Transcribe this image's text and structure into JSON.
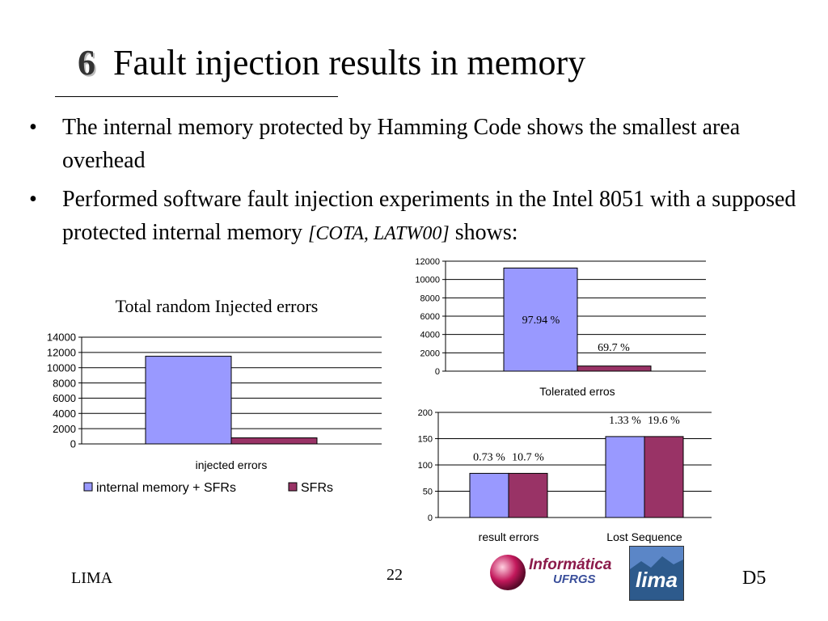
{
  "slide": {
    "number": "6",
    "title": "Fault injection results in memory",
    "bullets": [
      {
        "text": "The internal memory protected by Hamming Code shows the smallest area overhead"
      },
      {
        "text": "Performed software fault injection experiments in the Intel 8051 with a supposed protected internal memory ",
        "citation": "[COTA, LATW00]",
        "tail": " shows:"
      }
    ],
    "footer": {
      "left": "LIMA",
      "center": "22",
      "right": "D5"
    },
    "logos": {
      "informatica": {
        "line1": "Informática",
        "line2": "UFRGS",
        "colors": {
          "sphere": "#c2185b",
          "line1": "#8b1a4a",
          "line2": "#3a4f9b"
        }
      },
      "lima": {
        "text": "lima",
        "colors": {
          "sky": "#5b86c7",
          "ground": "#2d5a8c",
          "text": "#ffffff"
        }
      }
    }
  },
  "colors": {
    "series1": "#9999ff",
    "series2": "#993366",
    "axis": "#000000",
    "grid": "#000000"
  },
  "chart_data": [
    {
      "type": "bar",
      "title": "Total random Injected errors",
      "categories": [
        "injected errors"
      ],
      "series": [
        {
          "name": "internal memory + SFRs",
          "values": [
            11500
          ]
        },
        {
          "name": "SFRs",
          "values": [
            800
          ]
        }
      ],
      "ylim": [
        0,
        14000
      ],
      "yticks": [
        0,
        2000,
        4000,
        6000,
        8000,
        10000,
        12000,
        14000
      ],
      "grid": true,
      "legend": "bottom"
    },
    {
      "type": "bar",
      "title": "",
      "categories": [
        "Tolerated erros"
      ],
      "series": [
        {
          "values": [
            11250
          ],
          "labels": [
            "97.94 %"
          ]
        },
        {
          "values": [
            560
          ],
          "labels": [
            "69.7 %"
          ]
        }
      ],
      "ylim": [
        0,
        12000
      ],
      "yticks": [
        0,
        2000,
        4000,
        6000,
        8000,
        10000,
        12000
      ],
      "grid": true
    },
    {
      "type": "bar",
      "title": "",
      "categories": [
        "result errors",
        "Lost Sequence"
      ],
      "series": [
        {
          "values": [
            84,
            154
          ],
          "labels": [
            "0.73 %",
            "1.33 %"
          ]
        },
        {
          "values": [
            84,
            154
          ],
          "labels": [
            "10.7 %",
            "19.6 %"
          ]
        }
      ],
      "ylim": [
        0,
        200
      ],
      "yticks": [
        0,
        50,
        100,
        150,
        200
      ],
      "grid": true
    }
  ]
}
